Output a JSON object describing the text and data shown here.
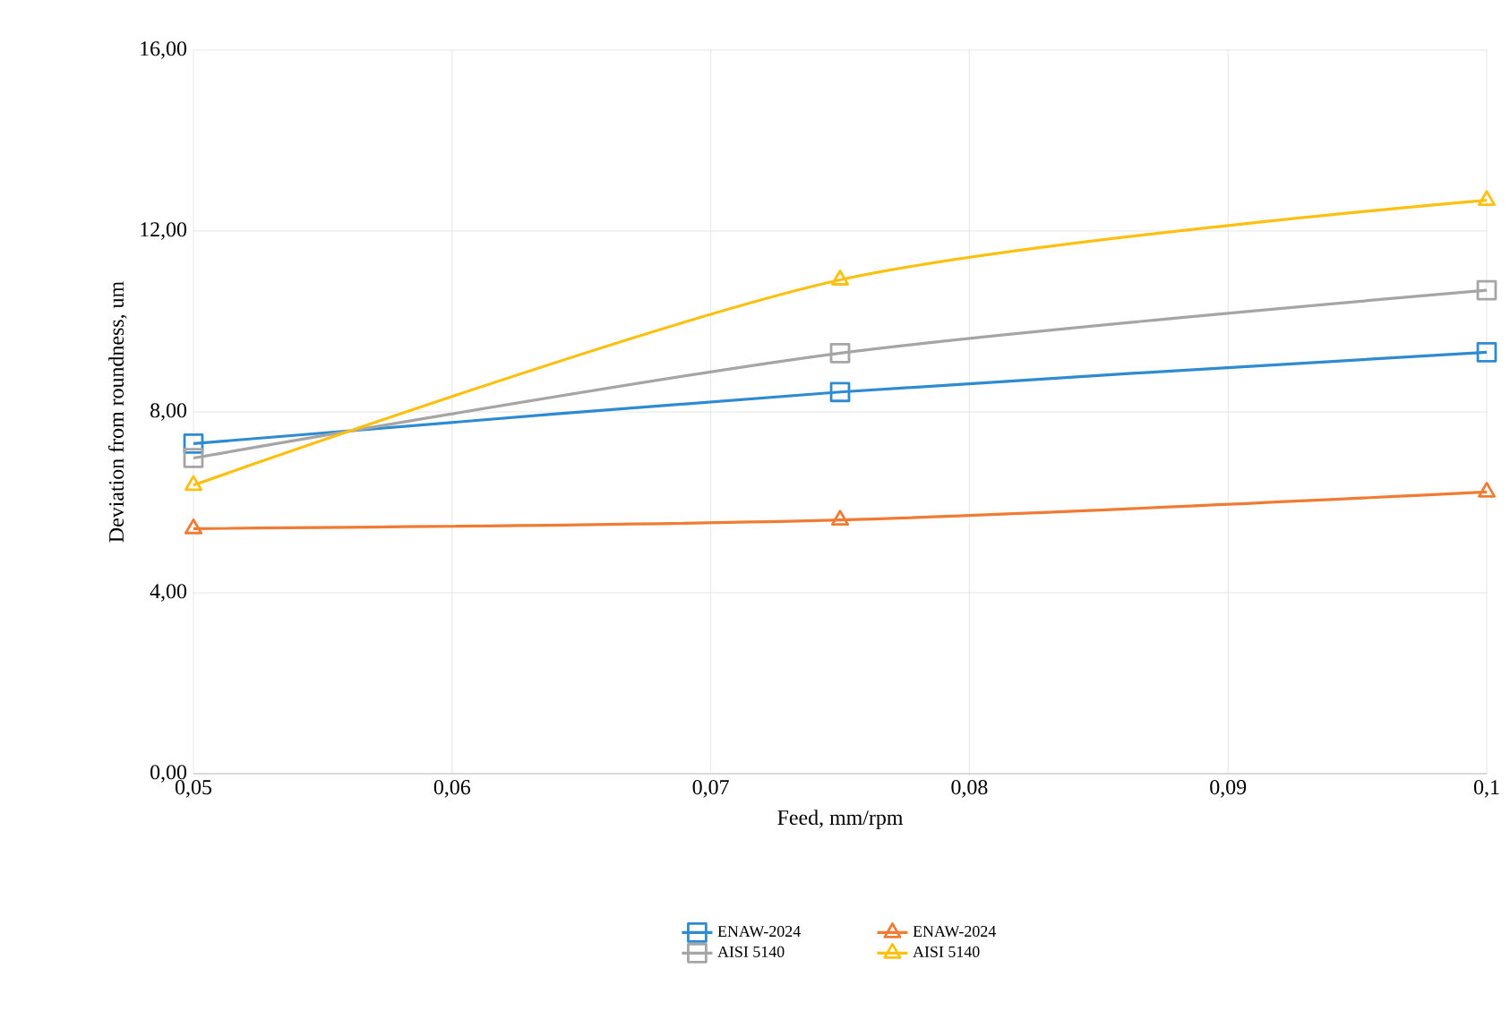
{
  "chart_data": {
    "type": "line",
    "xlabel": "Feed, mm/rpm",
    "ylabel": "Deviation from roundness, um",
    "x": [
      0.05,
      0.075,
      0.1
    ],
    "series": [
      {
        "name": "ENAW-2024",
        "color": "#2e8bd0",
        "marker": "square",
        "values": [
          7.3,
          8.44,
          9.32
        ]
      },
      {
        "name": "ENAW-2024",
        "color": "#f07c34",
        "marker": "triangle",
        "values": [
          5.42,
          5.61,
          6.23
        ]
      },
      {
        "name": "AISI 5140",
        "color": "#a5a5a5",
        "marker": "square",
        "values": [
          6.98,
          9.3,
          10.69
        ]
      },
      {
        "name": "AISI 5140",
        "color": "#fcc010",
        "marker": "triangle",
        "values": [
          6.38,
          10.92,
          12.68
        ]
      }
    ],
    "xlim": [
      0.05,
      0.1
    ],
    "ylim": [
      0,
      16
    ],
    "xticks": [
      {
        "value": 0.05,
        "label": "0,05"
      },
      {
        "value": 0.06,
        "label": "0,06"
      },
      {
        "value": 0.07,
        "label": "0,07"
      },
      {
        "value": 0.08,
        "label": "0,08"
      },
      {
        "value": 0.09,
        "label": "0,09"
      },
      {
        "value": 0.1,
        "label": "0,1"
      }
    ],
    "yticks": [
      {
        "value": 0,
        "label": "0,00"
      },
      {
        "value": 4,
        "label": "4,00"
      },
      {
        "value": 8,
        "label": "8,00"
      },
      {
        "value": 12,
        "label": "12,00"
      },
      {
        "value": 16,
        "label": "16,00"
      }
    ],
    "grid": true,
    "legend": "bottom",
    "line_style": "solid"
  }
}
